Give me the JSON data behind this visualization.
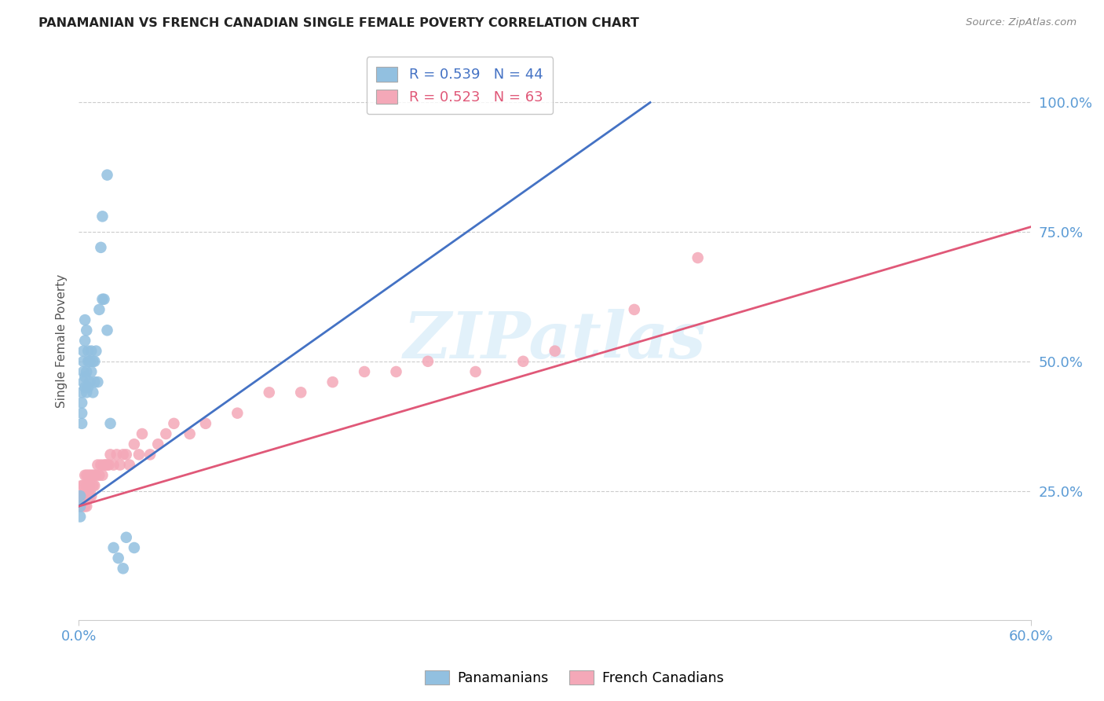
{
  "title": "PANAMANIAN VS FRENCH CANADIAN SINGLE FEMALE POVERTY CORRELATION CHART",
  "source": "Source: ZipAtlas.com",
  "ylabel": "Single Female Poverty",
  "ytick_labels": [
    "100.0%",
    "75.0%",
    "50.0%",
    "25.0%"
  ],
  "ytick_values": [
    1.0,
    0.75,
    0.5,
    0.25
  ],
  "blue_color": "#92c0e0",
  "pink_color": "#f4a8b8",
  "blue_line_color": "#4472c4",
  "pink_line_color": "#e05878",
  "tick_color": "#5b9bd5",
  "legend_label_blue": "Panamanians",
  "legend_label_pink": "French Canadians",
  "xmin": 0.0,
  "xmax": 0.6,
  "ymin": 0.0,
  "ymax": 1.08,
  "pan_x": [
    0.001,
    0.001,
    0.001,
    0.002,
    0.002,
    0.002,
    0.002,
    0.003,
    0.003,
    0.003,
    0.003,
    0.004,
    0.004,
    0.004,
    0.004,
    0.005,
    0.005,
    0.005,
    0.006,
    0.006,
    0.006,
    0.007,
    0.007,
    0.008,
    0.008,
    0.009,
    0.009,
    0.01,
    0.01,
    0.011,
    0.012,
    0.013,
    0.014,
    0.015,
    0.016,
    0.018,
    0.02,
    0.022,
    0.025,
    0.028,
    0.03,
    0.035,
    0.015,
    0.018
  ],
  "pan_y": [
    0.2,
    0.22,
    0.24,
    0.38,
    0.4,
    0.42,
    0.44,
    0.46,
    0.48,
    0.5,
    0.52,
    0.45,
    0.47,
    0.54,
    0.58,
    0.44,
    0.48,
    0.56,
    0.45,
    0.5,
    0.52,
    0.46,
    0.5,
    0.48,
    0.52,
    0.44,
    0.5,
    0.46,
    0.5,
    0.52,
    0.46,
    0.6,
    0.72,
    0.62,
    0.62,
    0.56,
    0.38,
    0.14,
    0.12,
    0.1,
    0.16,
    0.14,
    0.78,
    0.86
  ],
  "fr_x": [
    0.001,
    0.001,
    0.002,
    0.002,
    0.002,
    0.003,
    0.003,
    0.003,
    0.004,
    0.004,
    0.004,
    0.005,
    0.005,
    0.005,
    0.006,
    0.006,
    0.006,
    0.007,
    0.007,
    0.007,
    0.008,
    0.008,
    0.009,
    0.009,
    0.01,
    0.01,
    0.011,
    0.012,
    0.013,
    0.014,
    0.015,
    0.016,
    0.017,
    0.018,
    0.019,
    0.02,
    0.022,
    0.024,
    0.026,
    0.028,
    0.03,
    0.032,
    0.035,
    0.038,
    0.04,
    0.045,
    0.05,
    0.055,
    0.06,
    0.07,
    0.08,
    0.1,
    0.12,
    0.14,
    0.16,
    0.18,
    0.2,
    0.22,
    0.25,
    0.28,
    0.3,
    0.35,
    0.39
  ],
  "fr_y": [
    0.22,
    0.24,
    0.22,
    0.24,
    0.26,
    0.22,
    0.24,
    0.26,
    0.22,
    0.24,
    0.28,
    0.22,
    0.26,
    0.28,
    0.24,
    0.26,
    0.28,
    0.24,
    0.26,
    0.28,
    0.24,
    0.28,
    0.26,
    0.28,
    0.26,
    0.28,
    0.28,
    0.3,
    0.28,
    0.3,
    0.28,
    0.3,
    0.3,
    0.3,
    0.3,
    0.32,
    0.3,
    0.32,
    0.3,
    0.32,
    0.32,
    0.3,
    0.34,
    0.32,
    0.36,
    0.32,
    0.34,
    0.36,
    0.38,
    0.36,
    0.38,
    0.4,
    0.44,
    0.44,
    0.46,
    0.48,
    0.48,
    0.5,
    0.48,
    0.5,
    0.52,
    0.6,
    0.7
  ]
}
